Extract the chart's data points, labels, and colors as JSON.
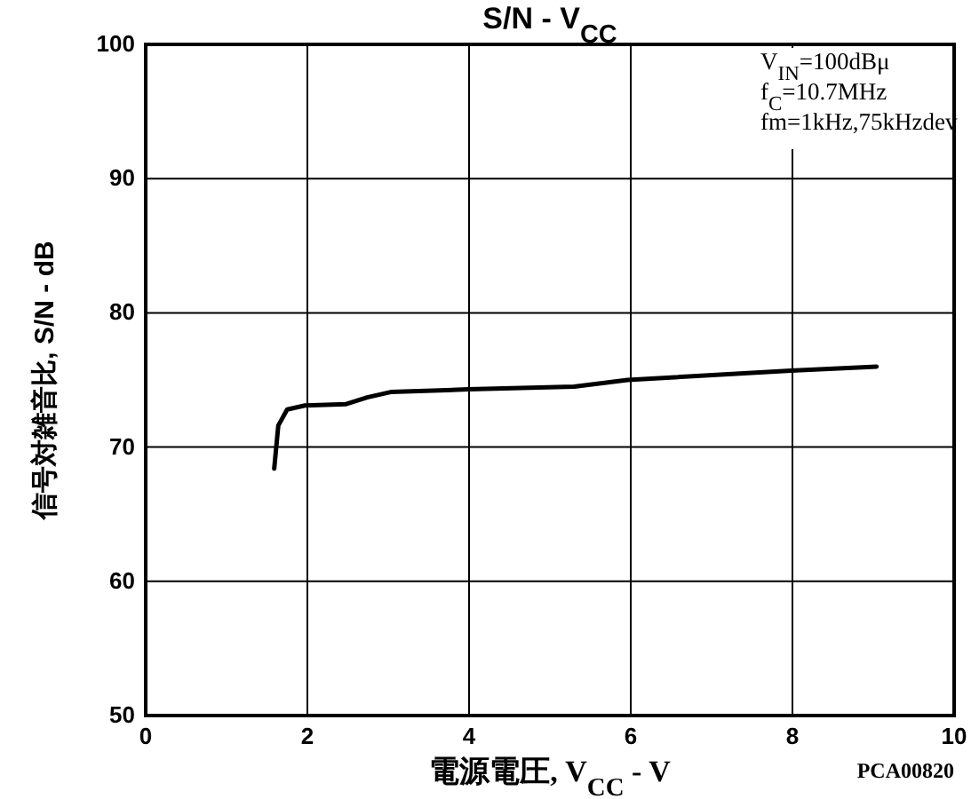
{
  "chart_data": {
    "type": "line",
    "title": "S/N - V$_{CC}$",
    "xlabel": "電源電圧, V$_{CC}$ - V",
    "ylabel": "信号対雑音比, S/N - dB",
    "x": [
      1.59,
      1.64,
      1.75,
      1.97,
      2.48,
      2.74,
      3.03,
      3.99,
      5.3,
      5.96,
      7.98,
      9.04
    ],
    "series": [
      {
        "color": "#000000",
        "values": [
          68.4,
          71.6,
          72.8,
          73.1,
          73.2,
          73.7,
          74.1,
          74.3,
          74.5,
          75.0,
          75.7,
          76.0
        ]
      }
    ],
    "xlim": [
      0,
      10
    ],
    "xticks": [
      0,
      2,
      4,
      6,
      8,
      10
    ],
    "ylim": [
      50,
      100
    ],
    "yticks": [
      50,
      60,
      70,
      80,
      90,
      100
    ],
    "grid": true,
    "marker": "none",
    "line_style": "solid",
    "annotations": [
      "V$_{IN}$=100dBμ",
      "f$_{C}$=10.7MHz",
      "fm=1kHz,75kHzdev",
      "PCA00820"
    ]
  }
}
